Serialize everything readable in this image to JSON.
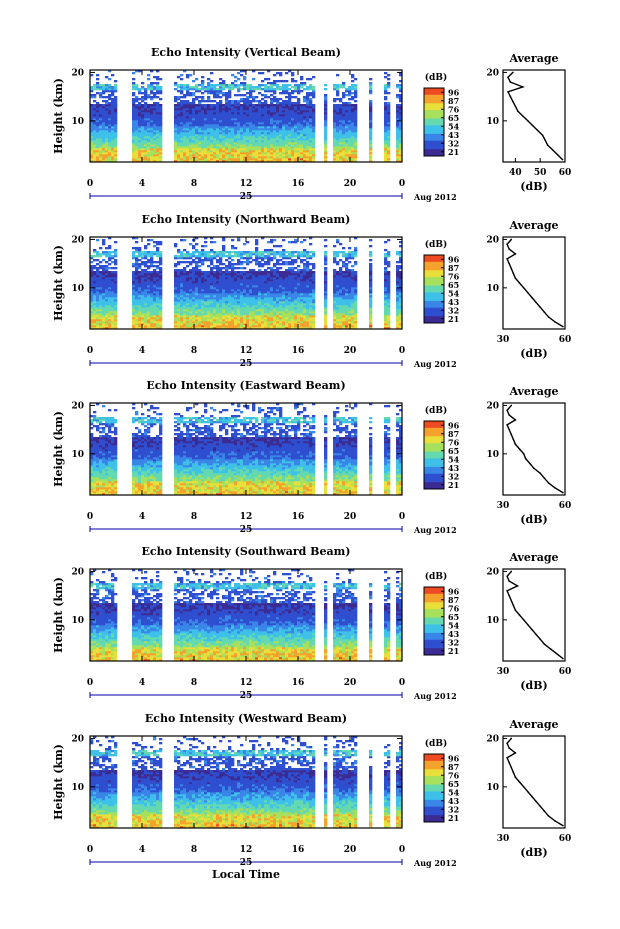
{
  "figure": {
    "xlabel": "Local Time",
    "date_label": "Aug 2012",
    "day_label": "25",
    "ylabel": "Height (km)",
    "colorbar_unit": "(dB)",
    "avg_title": "Average",
    "avg_xlabel": "(dB)",
    "x_ticks": [
      "0",
      "4",
      "8",
      "12",
      "16",
      "20",
      "0"
    ],
    "y_ticks": [
      "20",
      "10"
    ]
  },
  "colors": {
    "scale": [
      "#3b2b93",
      "#2f4fd0",
      "#3a86e8",
      "#3ec1e8",
      "#64d9b0",
      "#a6e05c",
      "#e8df3a",
      "#f5a22c",
      "#ee4b23"
    ]
  },
  "chart_data": [
    {
      "type": "heatmap",
      "title": "Echo Intensity (Vertical Beam)",
      "xlim": [
        0,
        24
      ],
      "ylim": [
        1.5,
        20.5
      ],
      "colorbar_ticks": [
        "96",
        "87",
        "76",
        "65",
        "54",
        "43",
        "32",
        "21"
      ],
      "data_gaps_hours": [
        [
          2.1,
          3.2
        ],
        [
          5.6,
          6.5
        ],
        [
          17.4,
          17.9
        ],
        [
          18.2,
          18.8
        ],
        [
          20.6,
          21.5
        ],
        [
          21.8,
          22.6
        ],
        [
          23.1,
          23.5
        ]
      ],
      "profile": {
        "xlim": [
          35,
          60
        ],
        "x_ticks": [
          "40",
          "50",
          "60"
        ],
        "height_km": [
          2,
          3,
          4,
          5,
          6,
          7,
          8,
          9,
          10,
          11,
          12,
          13,
          14,
          15,
          16,
          17,
          18,
          19,
          20
        ],
        "db": [
          59,
          57,
          55,
          53,
          52,
          51,
          49,
          47,
          45,
          43,
          41,
          40,
          39,
          38,
          37,
          43,
          38,
          37,
          39
        ]
      }
    },
    {
      "type": "heatmap",
      "title": "Echo Intensity (Northward Beam)",
      "xlim": [
        0,
        24
      ],
      "ylim": [
        1.5,
        20.5
      ],
      "colorbar_ticks": [
        "96",
        "87",
        "76",
        "65",
        "54",
        "43",
        "32",
        "21"
      ],
      "data_gaps_hours": [
        [
          2.1,
          3.2
        ],
        [
          5.6,
          6.5
        ],
        [
          17.4,
          17.9
        ],
        [
          18.2,
          18.8
        ],
        [
          20.6,
          21.5
        ],
        [
          21.8,
          22.6
        ],
        [
          23.1,
          23.5
        ]
      ],
      "profile": {
        "xlim": [
          30,
          60
        ],
        "x_ticks": [
          "30",
          "60"
        ],
        "height_km": [
          2,
          3,
          4,
          5,
          6,
          7,
          8,
          9,
          10,
          11,
          12,
          13,
          14,
          15,
          16,
          17,
          18,
          19,
          20
        ],
        "db": [
          59,
          55,
          52,
          50,
          48,
          46,
          44,
          42,
          40,
          38,
          36,
          35,
          34,
          33,
          32,
          36,
          33,
          32,
          34
        ]
      }
    },
    {
      "type": "heatmap",
      "title": "Echo Intensity (Eastward Beam)",
      "xlim": [
        0,
        24
      ],
      "ylim": [
        1.5,
        20.5
      ],
      "colorbar_ticks": [
        "96",
        "87",
        "76",
        "65",
        "54",
        "43",
        "32",
        "21"
      ],
      "data_gaps_hours": [
        [
          2.1,
          3.2
        ],
        [
          5.6,
          6.5
        ],
        [
          17.4,
          17.9
        ],
        [
          18.2,
          18.8
        ],
        [
          20.6,
          21.5
        ],
        [
          21.8,
          22.6
        ],
        [
          23.1,
          23.5
        ]
      ],
      "profile": {
        "xlim": [
          30,
          60
        ],
        "x_ticks": [
          "30",
          "60"
        ],
        "height_km": [
          2,
          3,
          4,
          5,
          6,
          7,
          8,
          9,
          10,
          11,
          12,
          13,
          14,
          15,
          16,
          17,
          18,
          19,
          20
        ],
        "db": [
          59,
          55,
          52,
          50,
          48,
          45,
          43,
          41,
          40,
          38,
          36,
          35,
          34,
          33,
          32,
          36,
          33,
          32,
          34
        ]
      }
    },
    {
      "type": "heatmap",
      "title": "Echo Intensity (Southward Beam)",
      "xlim": [
        0,
        24
      ],
      "ylim": [
        1.5,
        20.5
      ],
      "colorbar_ticks": [
        "96",
        "87",
        "76",
        "65",
        "54",
        "43",
        "32",
        "21"
      ],
      "data_gaps_hours": [
        [
          2.1,
          3.2
        ],
        [
          5.6,
          6.5
        ],
        [
          17.4,
          17.9
        ],
        [
          18.2,
          18.8
        ],
        [
          20.6,
          21.5
        ],
        [
          21.8,
          22.6
        ],
        [
          23.1,
          23.5
        ]
      ],
      "profile": {
        "xlim": [
          30,
          60
        ],
        "x_ticks": [
          "30",
          "60"
        ],
        "height_km": [
          2,
          3,
          4,
          5,
          6,
          7,
          8,
          9,
          10,
          11,
          12,
          13,
          14,
          15,
          16,
          17,
          18,
          19,
          20
        ],
        "db": [
          59,
          56,
          53,
          50,
          48,
          46,
          44,
          42,
          40,
          38,
          36,
          35,
          34,
          33,
          32,
          37,
          33,
          32,
          34
        ]
      }
    },
    {
      "type": "heatmap",
      "title": "Echo Intensity (Westward Beam)",
      "xlim": [
        0,
        24
      ],
      "ylim": [
        1.5,
        20.5
      ],
      "colorbar_ticks": [
        "96",
        "87",
        "76",
        "65",
        "54",
        "43",
        "32",
        "21"
      ],
      "data_gaps_hours": [
        [
          2.1,
          3.2
        ],
        [
          5.6,
          6.5
        ],
        [
          17.4,
          17.9
        ],
        [
          18.2,
          18.8
        ],
        [
          20.6,
          21.5
        ],
        [
          21.8,
          22.6
        ],
        [
          23.1,
          23.5
        ]
      ],
      "profile": {
        "xlim": [
          30,
          60
        ],
        "x_ticks": [
          "30",
          "60"
        ],
        "height_km": [
          2,
          3,
          4,
          5,
          6,
          7,
          8,
          9,
          10,
          11,
          12,
          13,
          14,
          15,
          16,
          17,
          18,
          19,
          20
        ],
        "db": [
          59,
          55,
          52,
          50,
          48,
          46,
          44,
          42,
          40,
          38,
          36,
          35,
          34,
          33,
          32,
          36,
          33,
          32,
          34
        ]
      }
    }
  ]
}
